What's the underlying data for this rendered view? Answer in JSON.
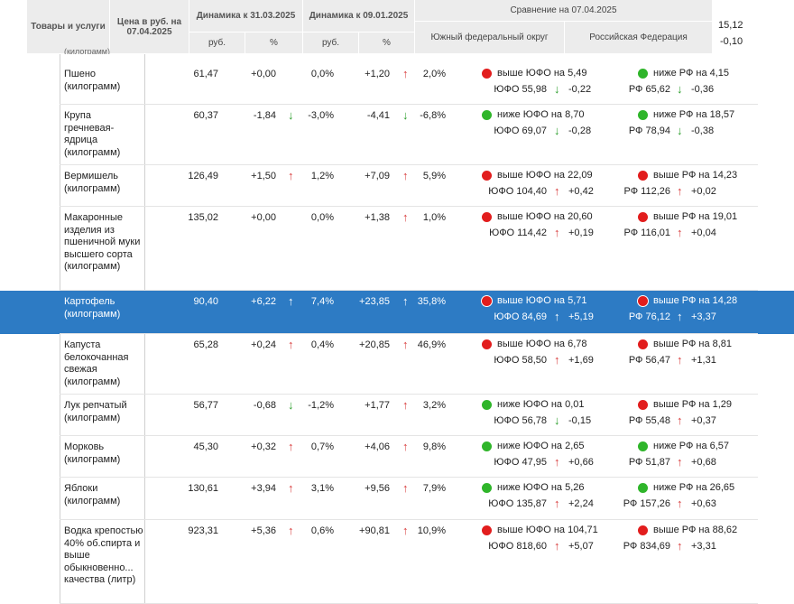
{
  "header": {
    "goods": "Товары и услуги",
    "price": "Цена в руб. на 07.04.2025",
    "dyn1": "Динамика к 31.03.2025",
    "dyn2": "Динамика к 09.01.2025",
    "rub1": "руб.",
    "pct1": "%",
    "rub2": "руб.",
    "pct2": "%",
    "compare": "Сравнение на 07.04.2025",
    "south": "Южный федеральный округ",
    "russia": "Российская Федерация",
    "extra_top": "15,12",
    "extra_bottom": "-0,10"
  },
  "partial_row": "(килограмм)",
  "rows": [
    {
      "name": "Пшено (килограмм)",
      "price": "61,47",
      "d1": "+0,00",
      "a1": "",
      "p1": "0,0%",
      "d2": "+1,20",
      "a2": "up",
      "p2": "2,0%",
      "yufo_line": "выше ЮФО на 5,49",
      "yufo_dot": "red",
      "yufo_val": "ЮФО 55,98",
      "yufo_arrow": "down",
      "yufo_delta": "-0,22",
      "rf_line": "ниже РФ на 4,15",
      "rf_dot": "green",
      "rf_val": "РФ 65,62",
      "rf_arrow": "down",
      "rf_delta": "-0,36"
    },
    {
      "name": "Крупа гречневая-ядрица (килограмм)",
      "price": "60,37",
      "d1": "-1,84",
      "a1": "down",
      "p1": "-3,0%",
      "d2": "-4,41",
      "a2": "down",
      "p2": "-6,8%",
      "yufo_line": "ниже ЮФО на 8,70",
      "yufo_dot": "green",
      "yufo_val": "ЮФО 69,07",
      "yufo_arrow": "down",
      "yufo_delta": "-0,28",
      "rf_line": "ниже РФ на 18,57",
      "rf_dot": "green",
      "rf_val": "РФ 78,94",
      "rf_arrow": "down",
      "rf_delta": "-0,38"
    },
    {
      "name": "Вермишель (килограмм)",
      "price": "126,49",
      "d1": "+1,50",
      "a1": "up",
      "p1": "1,2%",
      "d2": "+7,09",
      "a2": "up",
      "p2": "5,9%",
      "yufo_line": "выше ЮФО на 22,09",
      "yufo_dot": "red",
      "yufo_val": "ЮФО 104,40",
      "yufo_arrow": "up",
      "yufo_delta": "+0,42",
      "rf_line": "выше РФ на 14,23",
      "rf_dot": "red",
      "rf_val": "РФ 112,26",
      "rf_arrow": "up",
      "rf_delta": "+0,02"
    },
    {
      "name": "Макаронные изделия из пшеничной муки высшего сорта (килограмм)",
      "price": "135,02",
      "d1": "+0,00",
      "a1": "",
      "p1": "0,0%",
      "d2": "+1,38",
      "a2": "up",
      "p2": "1,0%",
      "yufo_line": "выше ЮФО на 20,60",
      "yufo_dot": "red",
      "yufo_val": "ЮФО 114,42",
      "yufo_arrow": "up",
      "yufo_delta": "+0,19",
      "rf_line": "выше РФ на 19,01",
      "rf_dot": "red",
      "rf_val": "РФ 116,01",
      "rf_arrow": "up",
      "rf_delta": "+0,04"
    },
    {
      "name": "Картофель (килограмм)",
      "price": "90,40",
      "d1": "+6,22",
      "a1": "up",
      "p1": "7,4%",
      "d2": "+23,85",
      "a2": "up",
      "p2": "35,8%",
      "yufo_line": "выше ЮФО на 5,71",
      "yufo_dot": "red",
      "yufo_val": "ЮФО 84,69",
      "yufo_arrow": "up",
      "yufo_delta": "+5,19",
      "rf_line": "выше РФ на 14,28",
      "rf_dot": "red",
      "rf_val": "РФ 76,12",
      "rf_arrow": "up",
      "rf_delta": "+3,37"
    },
    {
      "name": "Капуста белокочанная свежая (килограмм)",
      "price": "65,28",
      "d1": "+0,24",
      "a1": "up",
      "p1": "0,4%",
      "d2": "+20,85",
      "a2": "up",
      "p2": "46,9%",
      "yufo_line": "выше ЮФО на 6,78",
      "yufo_dot": "red",
      "yufo_val": "ЮФО 58,50",
      "yufo_arrow": "up",
      "yufo_delta": "+1,69",
      "rf_line": "выше РФ на 8,81",
      "rf_dot": "red",
      "rf_val": "РФ 56,47",
      "rf_arrow": "up",
      "rf_delta": "+1,31"
    },
    {
      "name": "Лук репчатый (килограмм)",
      "price": "56,77",
      "d1": "-0,68",
      "a1": "down",
      "p1": "-1,2%",
      "d2": "+1,77",
      "a2": "up",
      "p2": "3,2%",
      "yufo_line": "ниже ЮФО на 0,01",
      "yufo_dot": "green",
      "yufo_val": "ЮФО 56,78",
      "yufo_arrow": "down",
      "yufo_delta": "-0,15",
      "rf_line": "выше РФ на 1,29",
      "rf_dot": "red",
      "rf_val": "РФ 55,48",
      "rf_arrow": "up",
      "rf_delta": "+0,37"
    },
    {
      "name": "Морковь (килограмм)",
      "price": "45,30",
      "d1": "+0,32",
      "a1": "up",
      "p1": "0,7%",
      "d2": "+4,06",
      "a2": "up",
      "p2": "9,8%",
      "yufo_line": "ниже ЮФО на 2,65",
      "yufo_dot": "green",
      "yufo_val": "ЮФО 47,95",
      "yufo_arrow": "up",
      "yufo_delta": "+0,66",
      "rf_line": "ниже РФ на 6,57",
      "rf_dot": "green",
      "rf_val": "РФ 51,87",
      "rf_arrow": "up",
      "rf_delta": "+0,68"
    },
    {
      "name": "Яблоки (килограмм)",
      "price": "130,61",
      "d1": "+3,94",
      "a1": "up",
      "p1": "3,1%",
      "d2": "+9,56",
      "a2": "up",
      "p2": "7,9%",
      "yufo_line": "ниже ЮФО на 5,26",
      "yufo_dot": "green",
      "yufo_val": "ЮФО 135,87",
      "yufo_arrow": "up",
      "yufo_delta": "+2,24",
      "rf_line": "ниже РФ на 26,65",
      "rf_dot": "green",
      "rf_val": "РФ 157,26",
      "rf_arrow": "up",
      "rf_delta": "+0,63"
    },
    {
      "name": "Водка крепостью 40% об.спирта и выше обыкновенно... качества (литр)",
      "price": "923,31",
      "d1": "+5,36",
      "a1": "up",
      "p1": "0,6%",
      "d2": "+90,81",
      "a2": "up",
      "p2": "10,9%",
      "yufo_line": "выше ЮФО на 104,71",
      "yufo_dot": "red",
      "yufo_val": "ЮФО 818,60",
      "yufo_arrow": "up",
      "yufo_delta": "+5,07",
      "rf_line": "выше РФ на 88,62",
      "rf_dot": "red",
      "rf_val": "РФ 834,69",
      "rf_arrow": "up",
      "rf_delta": "+3,31"
    }
  ],
  "highlight_row": 4,
  "colors": {
    "highlight": "#2d7bc4",
    "header_bg": "#ececec",
    "up": "#d83c3c",
    "down": "#2a9d2a"
  }
}
